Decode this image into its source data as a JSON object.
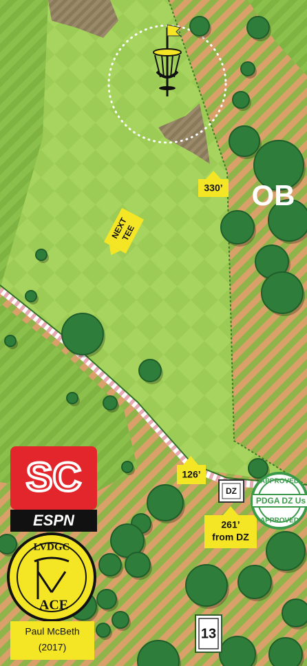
{
  "map": {
    "ob_label": "OB",
    "tee_distance": "330’",
    "next_tee": [
      "NEXT",
      "TEE"
    ],
    "marker_distance": "126’",
    "dz": {
      "label": "DZ",
      "distance": "261’",
      "note": "from DZ"
    },
    "stamp": {
      "top": "APPROVED",
      "middle": "PDGA DZ Us",
      "bottom": "APPROVED"
    },
    "sc_logo": {
      "title": "SC",
      "brand": "ESPN"
    },
    "ace_logo": {
      "club": "LVDGC",
      "word": "ACE"
    },
    "caption": [
      "Paul McBeth",
      "(2017)"
    ],
    "hole_number": "13"
  }
}
